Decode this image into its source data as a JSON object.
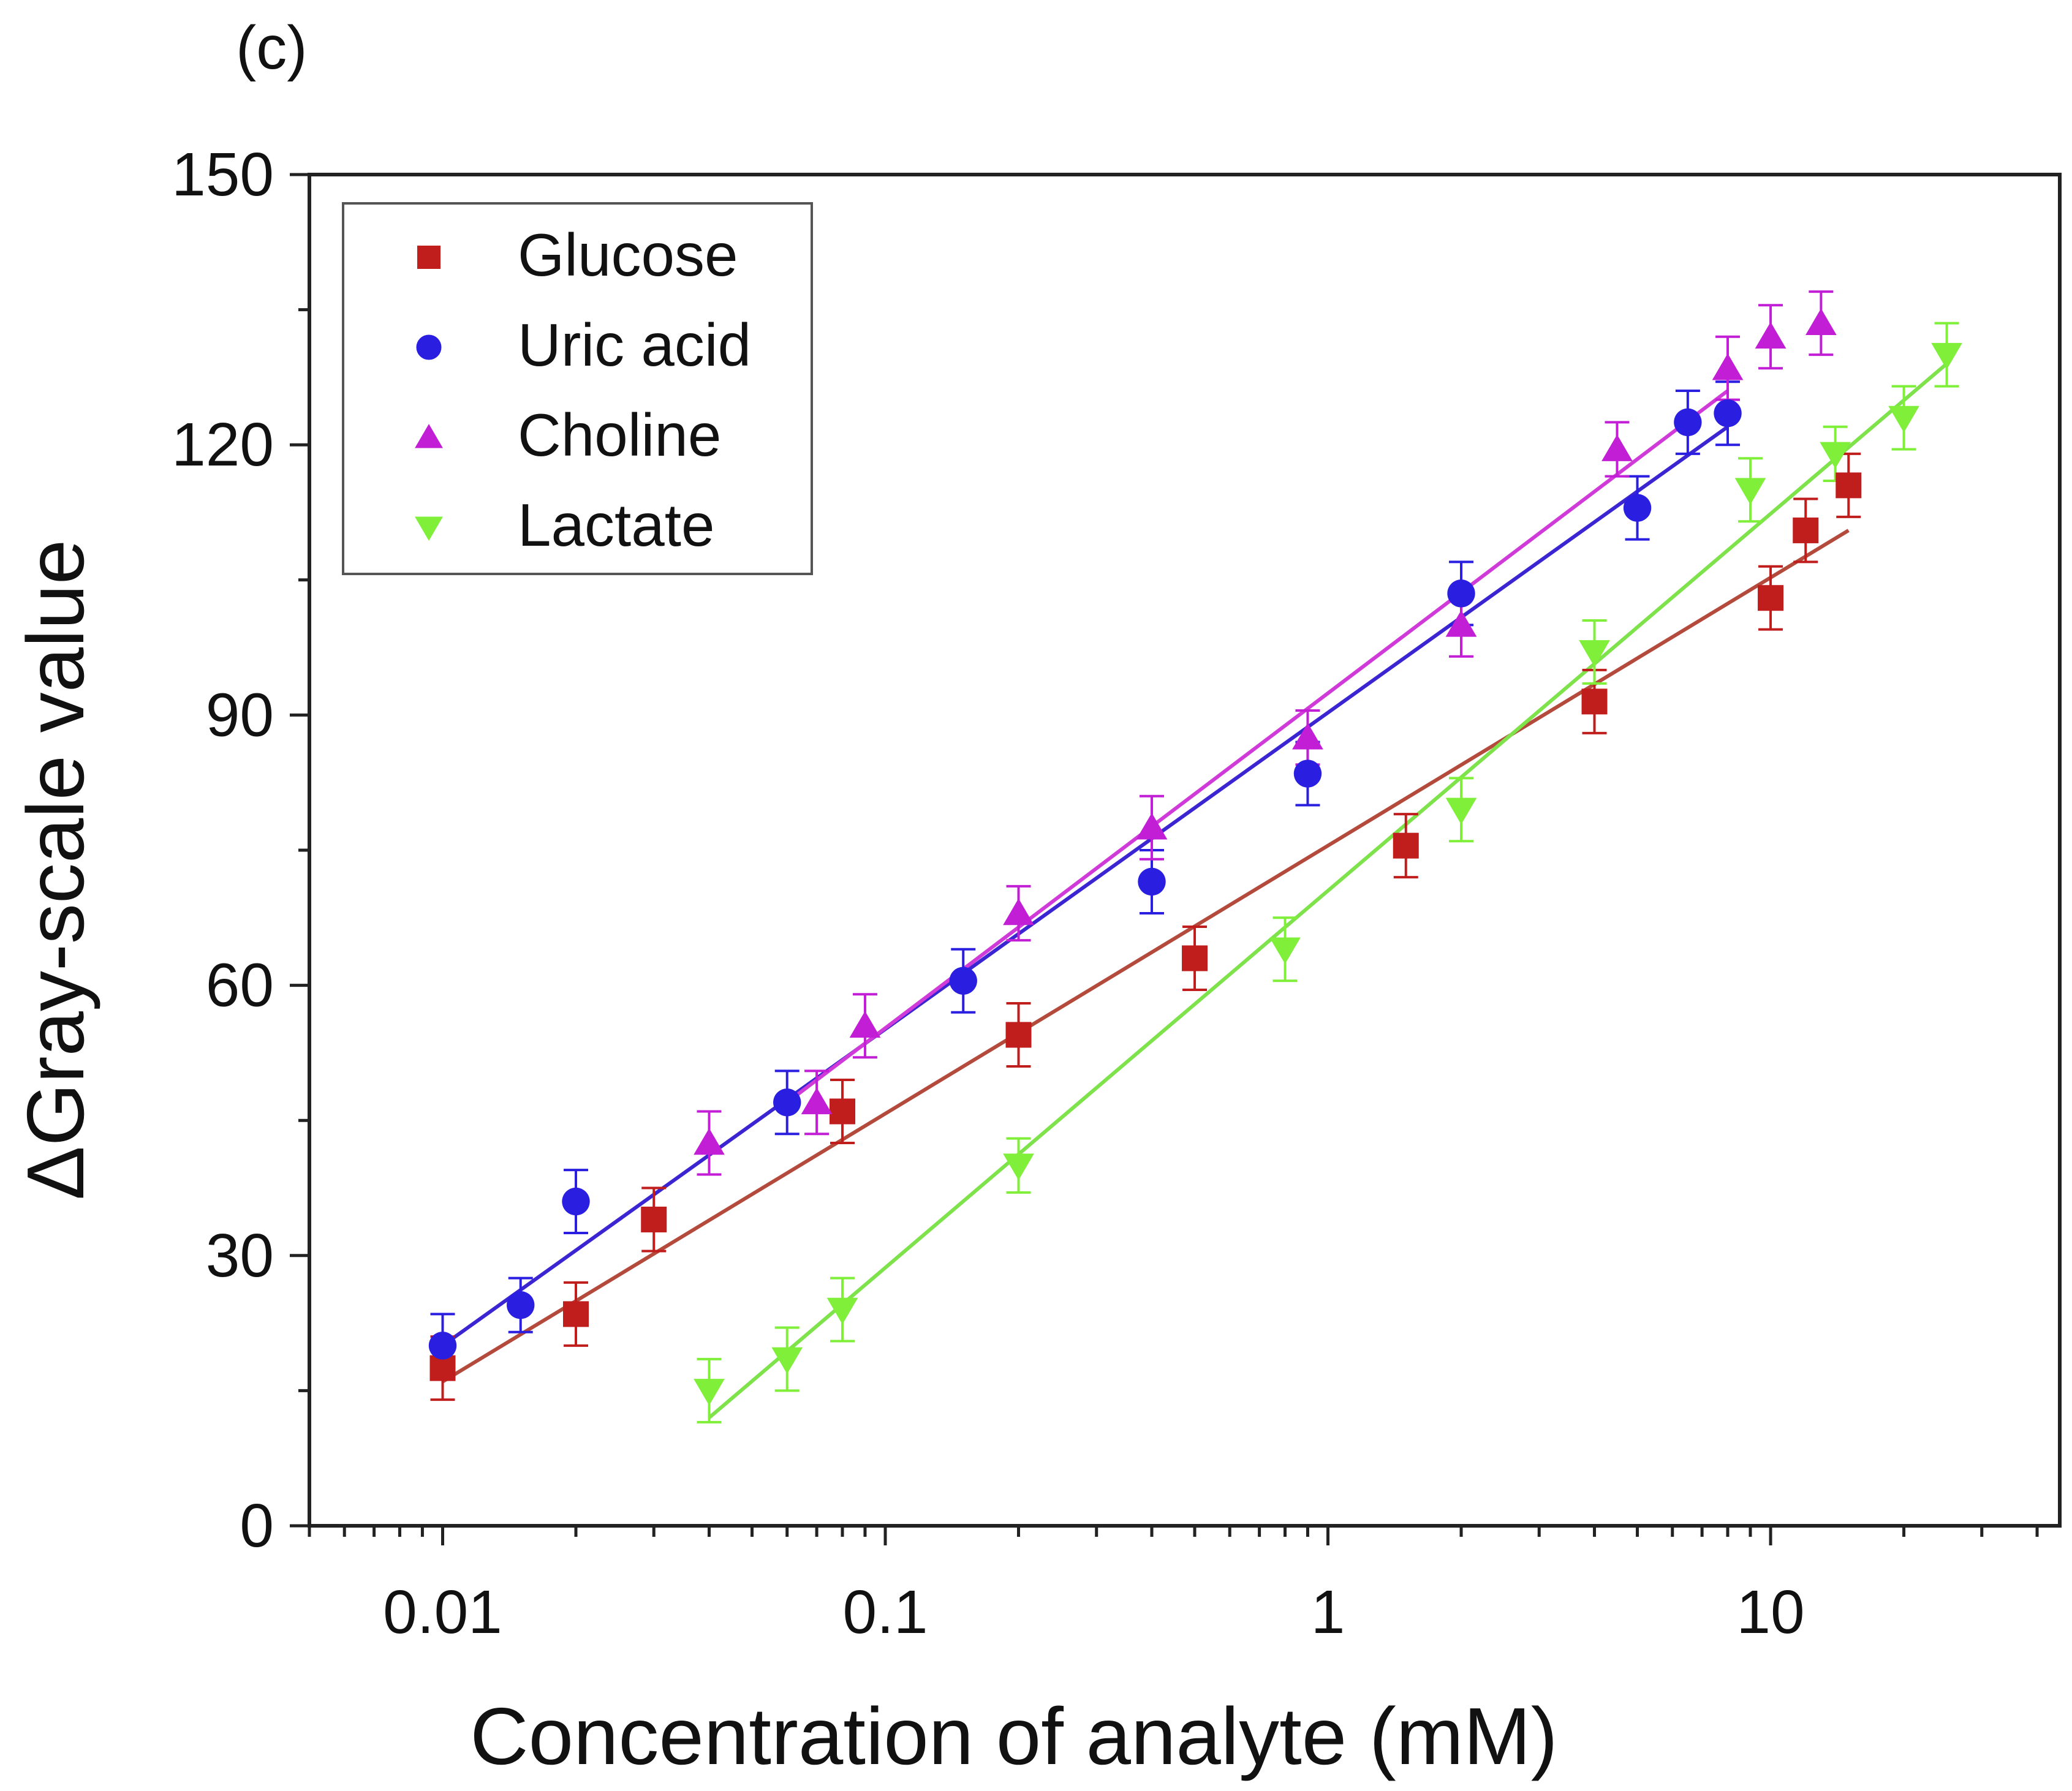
{
  "panel_label": "(c)",
  "colors": {
    "glucose": "#c01d1d",
    "uric_acid": "#2a1fe0",
    "choline": "#c21ed6",
    "lactate": "#7fef3a",
    "glucose_fit": "#b34a3c",
    "uric_acid_fit": "#3b24d2",
    "choline_fit": "#cf3ad8",
    "lactate_fit": "#7ee24a"
  },
  "chart_data": {
    "type": "scatter",
    "xscale": "log",
    "xlabel": "Concentration of analyte (mM)",
    "ylabel": "ΔGray-scale value",
    "xlim": [
      0.005,
      45
    ],
    "ylim": [
      0,
      150
    ],
    "xticks": [
      0.01,
      0.1,
      1,
      10
    ],
    "xtick_labels": [
      "0.01",
      "0.1",
      "1",
      "10"
    ],
    "yticks": [
      0,
      30,
      60,
      90,
      120,
      150
    ],
    "ytick_labels": [
      "0",
      "30",
      "60",
      "90",
      "120",
      "150"
    ],
    "legend_position": "top-left",
    "series": [
      {
        "name": "Glucose",
        "marker": "square",
        "color_key": "glucose",
        "fit_color_key": "glucose_fit",
        "x": [
          0.01,
          0.02,
          0.03,
          0.08,
          0.2,
          0.5,
          1.5,
          4,
          10,
          12,
          15
        ],
        "y": [
          17.5,
          23.5,
          34,
          46,
          54.5,
          63,
          75.5,
          91.5,
          103,
          110.5,
          115.5
        ],
        "err": [
          3.5,
          3.5,
          3.5,
          3.5,
          3.5,
          3.5,
          3.5,
          3.5,
          3.5,
          3.5,
          3.5
        ],
        "fit": {
          "x": [
            0.01,
            15
          ],
          "y": [
            16,
            110.5
          ]
        }
      },
      {
        "name": "Uric acid",
        "marker": "circle",
        "color_key": "uric_acid",
        "fit_color_key": "uric_acid_fit",
        "x": [
          0.01,
          0.015,
          0.02,
          0.06,
          0.15,
          0.4,
          0.9,
          2,
          5,
          6.5,
          8
        ],
        "y": [
          20,
          24.5,
          36,
          47,
          60.5,
          71.5,
          83.5,
          103.5,
          113,
          122.5,
          123.5
        ],
        "err": [
          3.5,
          3,
          3.5,
          3.5,
          3.5,
          3.5,
          3.5,
          3.5,
          3.5,
          3.5,
          3.5
        ],
        "fit": {
          "x": [
            0.01,
            8
          ],
          "y": [
            20,
            122
          ]
        }
      },
      {
        "name": "Choline",
        "marker": "triangle-up",
        "color_key": "choline",
        "fit_color_key": "choline_fit",
        "x": [
          0.04,
          0.07,
          0.09,
          0.2,
          0.4,
          0.9,
          2,
          4.5,
          8,
          10,
          13
        ],
        "y": [
          42.5,
          47,
          55.5,
          68,
          77.5,
          87.5,
          100,
          119.5,
          128.5,
          132,
          133.5
        ],
        "err": [
          3.5,
          3.5,
          3.5,
          3,
          3.5,
          3,
          3.5,
          3,
          3.5,
          3.5,
          3.5
        ],
        "fit": {
          "x": [
            0.06,
            8
          ],
          "y": [
            47,
            126
          ]
        }
      },
      {
        "name": "Lactate",
        "marker": "triangle-down",
        "color_key": "lactate",
        "fit_color_key": "lactate_fit",
        "x": [
          0.04,
          0.06,
          0.08,
          0.2,
          0.8,
          2,
          4,
          9,
          14,
          20,
          25
        ],
        "y": [
          15,
          18.5,
          24,
          40,
          64,
          79.5,
          97,
          115,
          119,
          123,
          130
        ],
        "err": [
          3.5,
          3.5,
          3.5,
          3,
          3.5,
          3.5,
          3.5,
          3.5,
          3,
          3.5,
          3.5
        ],
        "fit": {
          "x": [
            0.04,
            25
          ],
          "y": [
            12,
            129
          ]
        }
      }
    ]
  }
}
